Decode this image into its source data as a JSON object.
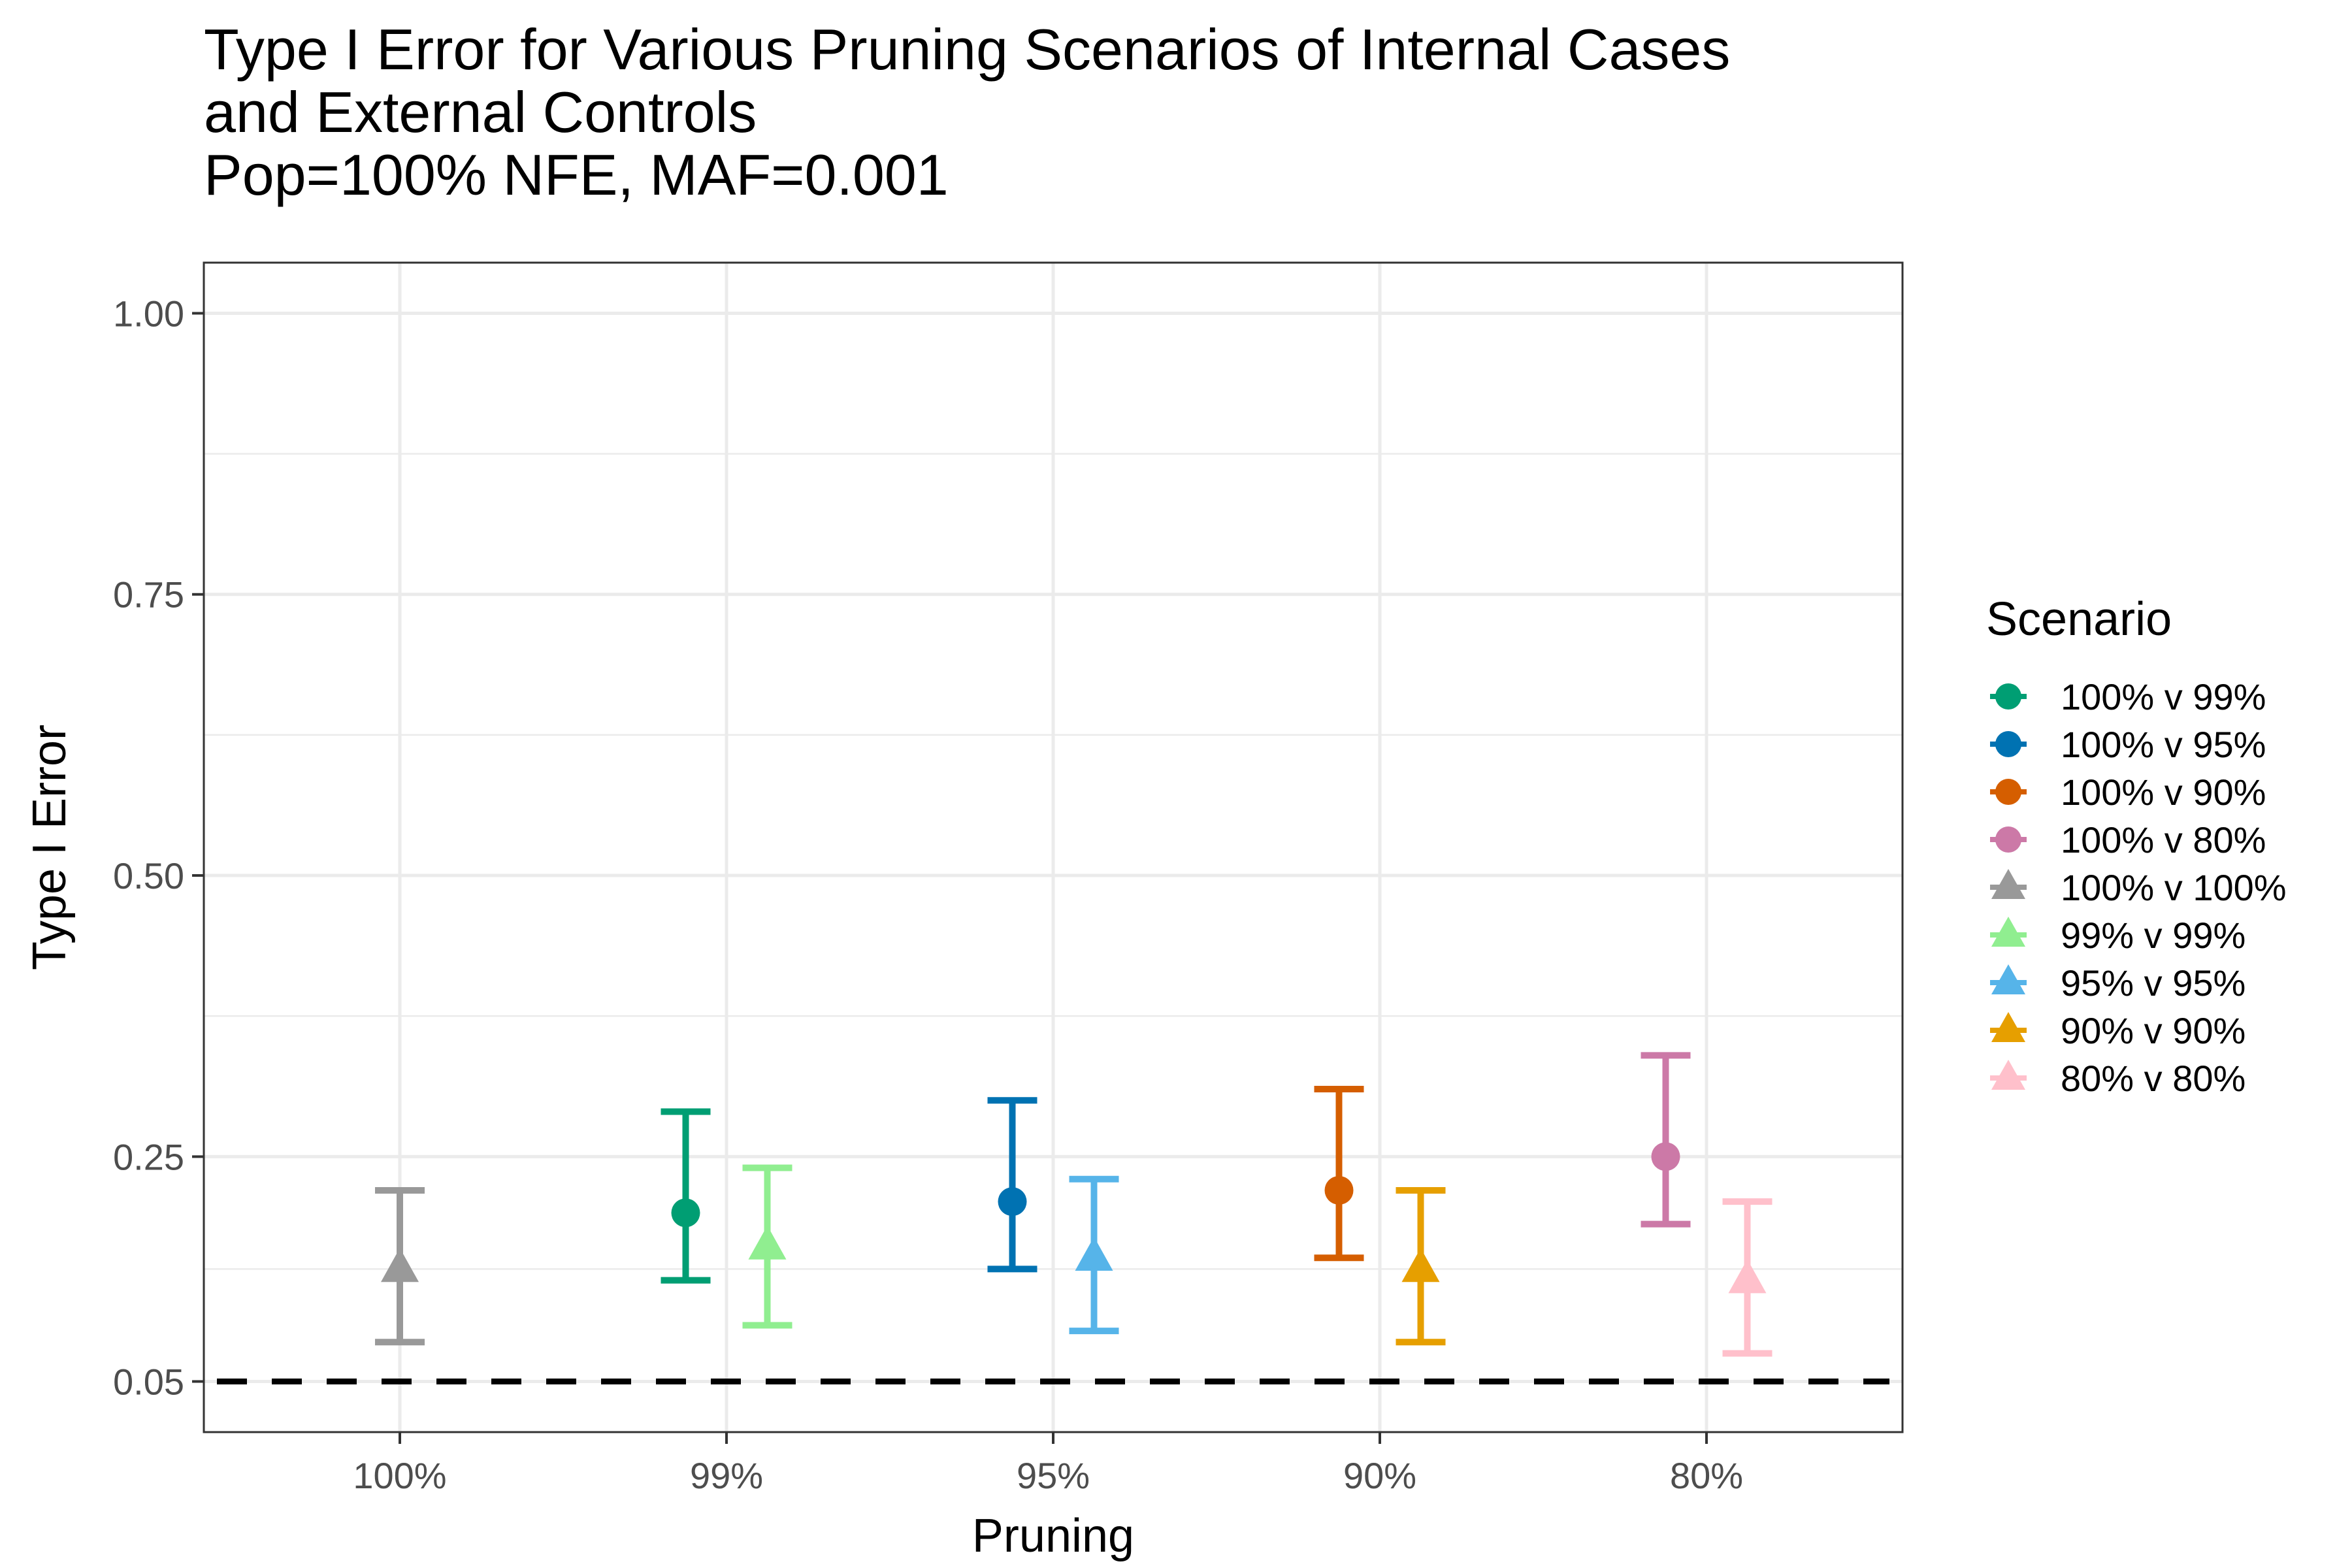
{
  "chart_data": {
    "type": "scatter",
    "title": "Type I Error for Various Pruning Scenarios of Internal Cases",
    "title_lines": [
      "Type I Error for Various Pruning Scenarios of Internal Cases",
      "and External Controls",
      "Pop=100% NFE, MAF=0.001"
    ],
    "xlabel": "Pruning",
    "ylabel": "Type I Error",
    "categories": [
      "100%",
      "99%",
      "95%",
      "90%",
      "80%"
    ],
    "y_ticks": [
      0.05,
      0.25,
      0.5,
      0.75,
      1.0
    ],
    "y_tick_labels": [
      "0.05",
      "0.25",
      "0.50",
      "0.75",
      "1.00"
    ],
    "ylim": [
      0.005,
      1.045
    ],
    "grid": true,
    "reference_line": {
      "y": 0.05,
      "style": "dashed",
      "color": "#000000"
    },
    "legend": {
      "title": "Scenario",
      "position": "right"
    },
    "series": [
      {
        "name": "100% v 99%",
        "color": "#009E73",
        "shape": "circle",
        "category": "99%",
        "offset": -0.125,
        "y": 0.2,
        "lower": 0.14,
        "upper": 0.29
      },
      {
        "name": "100% v 95%",
        "color": "#0072B2",
        "shape": "circle",
        "category": "95%",
        "offset": -0.125,
        "y": 0.21,
        "lower": 0.15,
        "upper": 0.3
      },
      {
        "name": "100% v 90%",
        "color": "#D55E00",
        "shape": "circle",
        "category": "90%",
        "offset": -0.125,
        "y": 0.22,
        "lower": 0.16,
        "upper": 0.31
      },
      {
        "name": "100% v 80%",
        "color": "#CC79A7",
        "shape": "circle",
        "category": "80%",
        "offset": -0.125,
        "y": 0.25,
        "lower": 0.19,
        "upper": 0.34
      },
      {
        "name": "100% v 100%",
        "color": "#999999",
        "shape": "triangle",
        "category": "100%",
        "offset": 0,
        "y": 0.15,
        "lower": 0.085,
        "upper": 0.22
      },
      {
        "name": "99% v 99%",
        "color": "#90EE90",
        "shape": "triangle",
        "category": "99%",
        "offset": 0.125,
        "y": 0.17,
        "lower": 0.1,
        "upper": 0.24
      },
      {
        "name": "95% v 95%",
        "color": "#56B4E9",
        "shape": "triangle",
        "category": "95%",
        "offset": 0.125,
        "y": 0.16,
        "lower": 0.095,
        "upper": 0.23
      },
      {
        "name": "90% v 90%",
        "color": "#E69F00",
        "shape": "triangle",
        "category": "90%",
        "offset": 0.125,
        "y": 0.15,
        "lower": 0.085,
        "upper": 0.22
      },
      {
        "name": "80% v 80%",
        "color": "#FFC0CB",
        "shape": "triangle",
        "category": "80%",
        "offset": 0.125,
        "y": 0.14,
        "lower": 0.075,
        "upper": 0.21
      }
    ]
  }
}
